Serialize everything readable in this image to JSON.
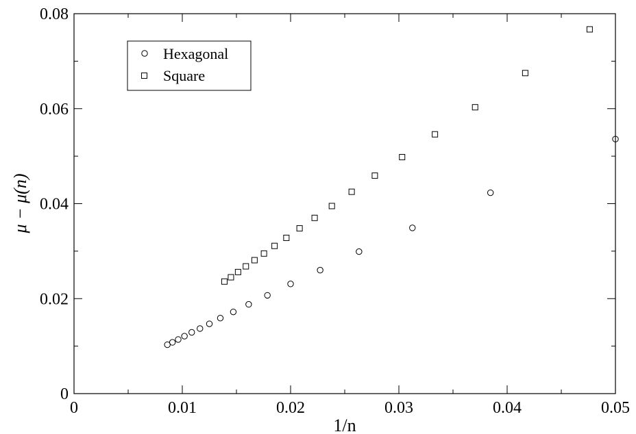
{
  "chart_data": {
    "type": "scatter",
    "xlabel": "1/n",
    "ylabel": "μ − μ(n)",
    "xlim": [
      0,
      0.05
    ],
    "ylim": [
      0,
      0.08
    ],
    "xticks": [
      0,
      0.01,
      0.02,
      0.03,
      0.04,
      0.05
    ],
    "xtick_labels": [
      "0",
      "0.01",
      "0.02",
      "0.03",
      "0.04",
      "0.05"
    ],
    "yticks": [
      0,
      0.02,
      0.04,
      0.06,
      0.08
    ],
    "ytick_labels": [
      "0",
      "0.02",
      "0.04",
      "0.06",
      "0.08"
    ],
    "grid": false,
    "legend_position": "top-left",
    "series": [
      {
        "name": "Hexagonal",
        "marker": "circle",
        "points": [
          [
            0.00862,
            0.0103
          ],
          [
            0.00909,
            0.0108
          ],
          [
            0.00962,
            0.0114
          ],
          [
            0.0102,
            0.0121
          ],
          [
            0.01087,
            0.0129
          ],
          [
            0.01163,
            0.0137
          ],
          [
            0.0125,
            0.0147
          ],
          [
            0.01351,
            0.0159
          ],
          [
            0.01471,
            0.0172
          ],
          [
            0.01613,
            0.0188
          ],
          [
            0.01786,
            0.0207
          ],
          [
            0.02,
            0.0231
          ],
          [
            0.02273,
            0.026
          ],
          [
            0.02632,
            0.0299
          ],
          [
            0.03125,
            0.0349
          ],
          [
            0.03846,
            0.0423
          ],
          [
            0.05,
            0.0536
          ]
        ]
      },
      {
        "name": "Square",
        "marker": "square",
        "points": [
          [
            0.01389,
            0.0236
          ],
          [
            0.01449,
            0.0245
          ],
          [
            0.01515,
            0.0256
          ],
          [
            0.01587,
            0.0268
          ],
          [
            0.01667,
            0.0281
          ],
          [
            0.01754,
            0.0295
          ],
          [
            0.01852,
            0.0311
          ],
          [
            0.01961,
            0.0328
          ],
          [
            0.02083,
            0.0348
          ],
          [
            0.02222,
            0.037
          ],
          [
            0.02381,
            0.0395
          ],
          [
            0.02564,
            0.0425
          ],
          [
            0.02778,
            0.0459
          ],
          [
            0.0303,
            0.0498
          ],
          [
            0.03333,
            0.0546
          ],
          [
            0.03704,
            0.0603
          ],
          [
            0.04167,
            0.0675
          ],
          [
            0.04762,
            0.0767
          ]
        ]
      }
    ]
  }
}
